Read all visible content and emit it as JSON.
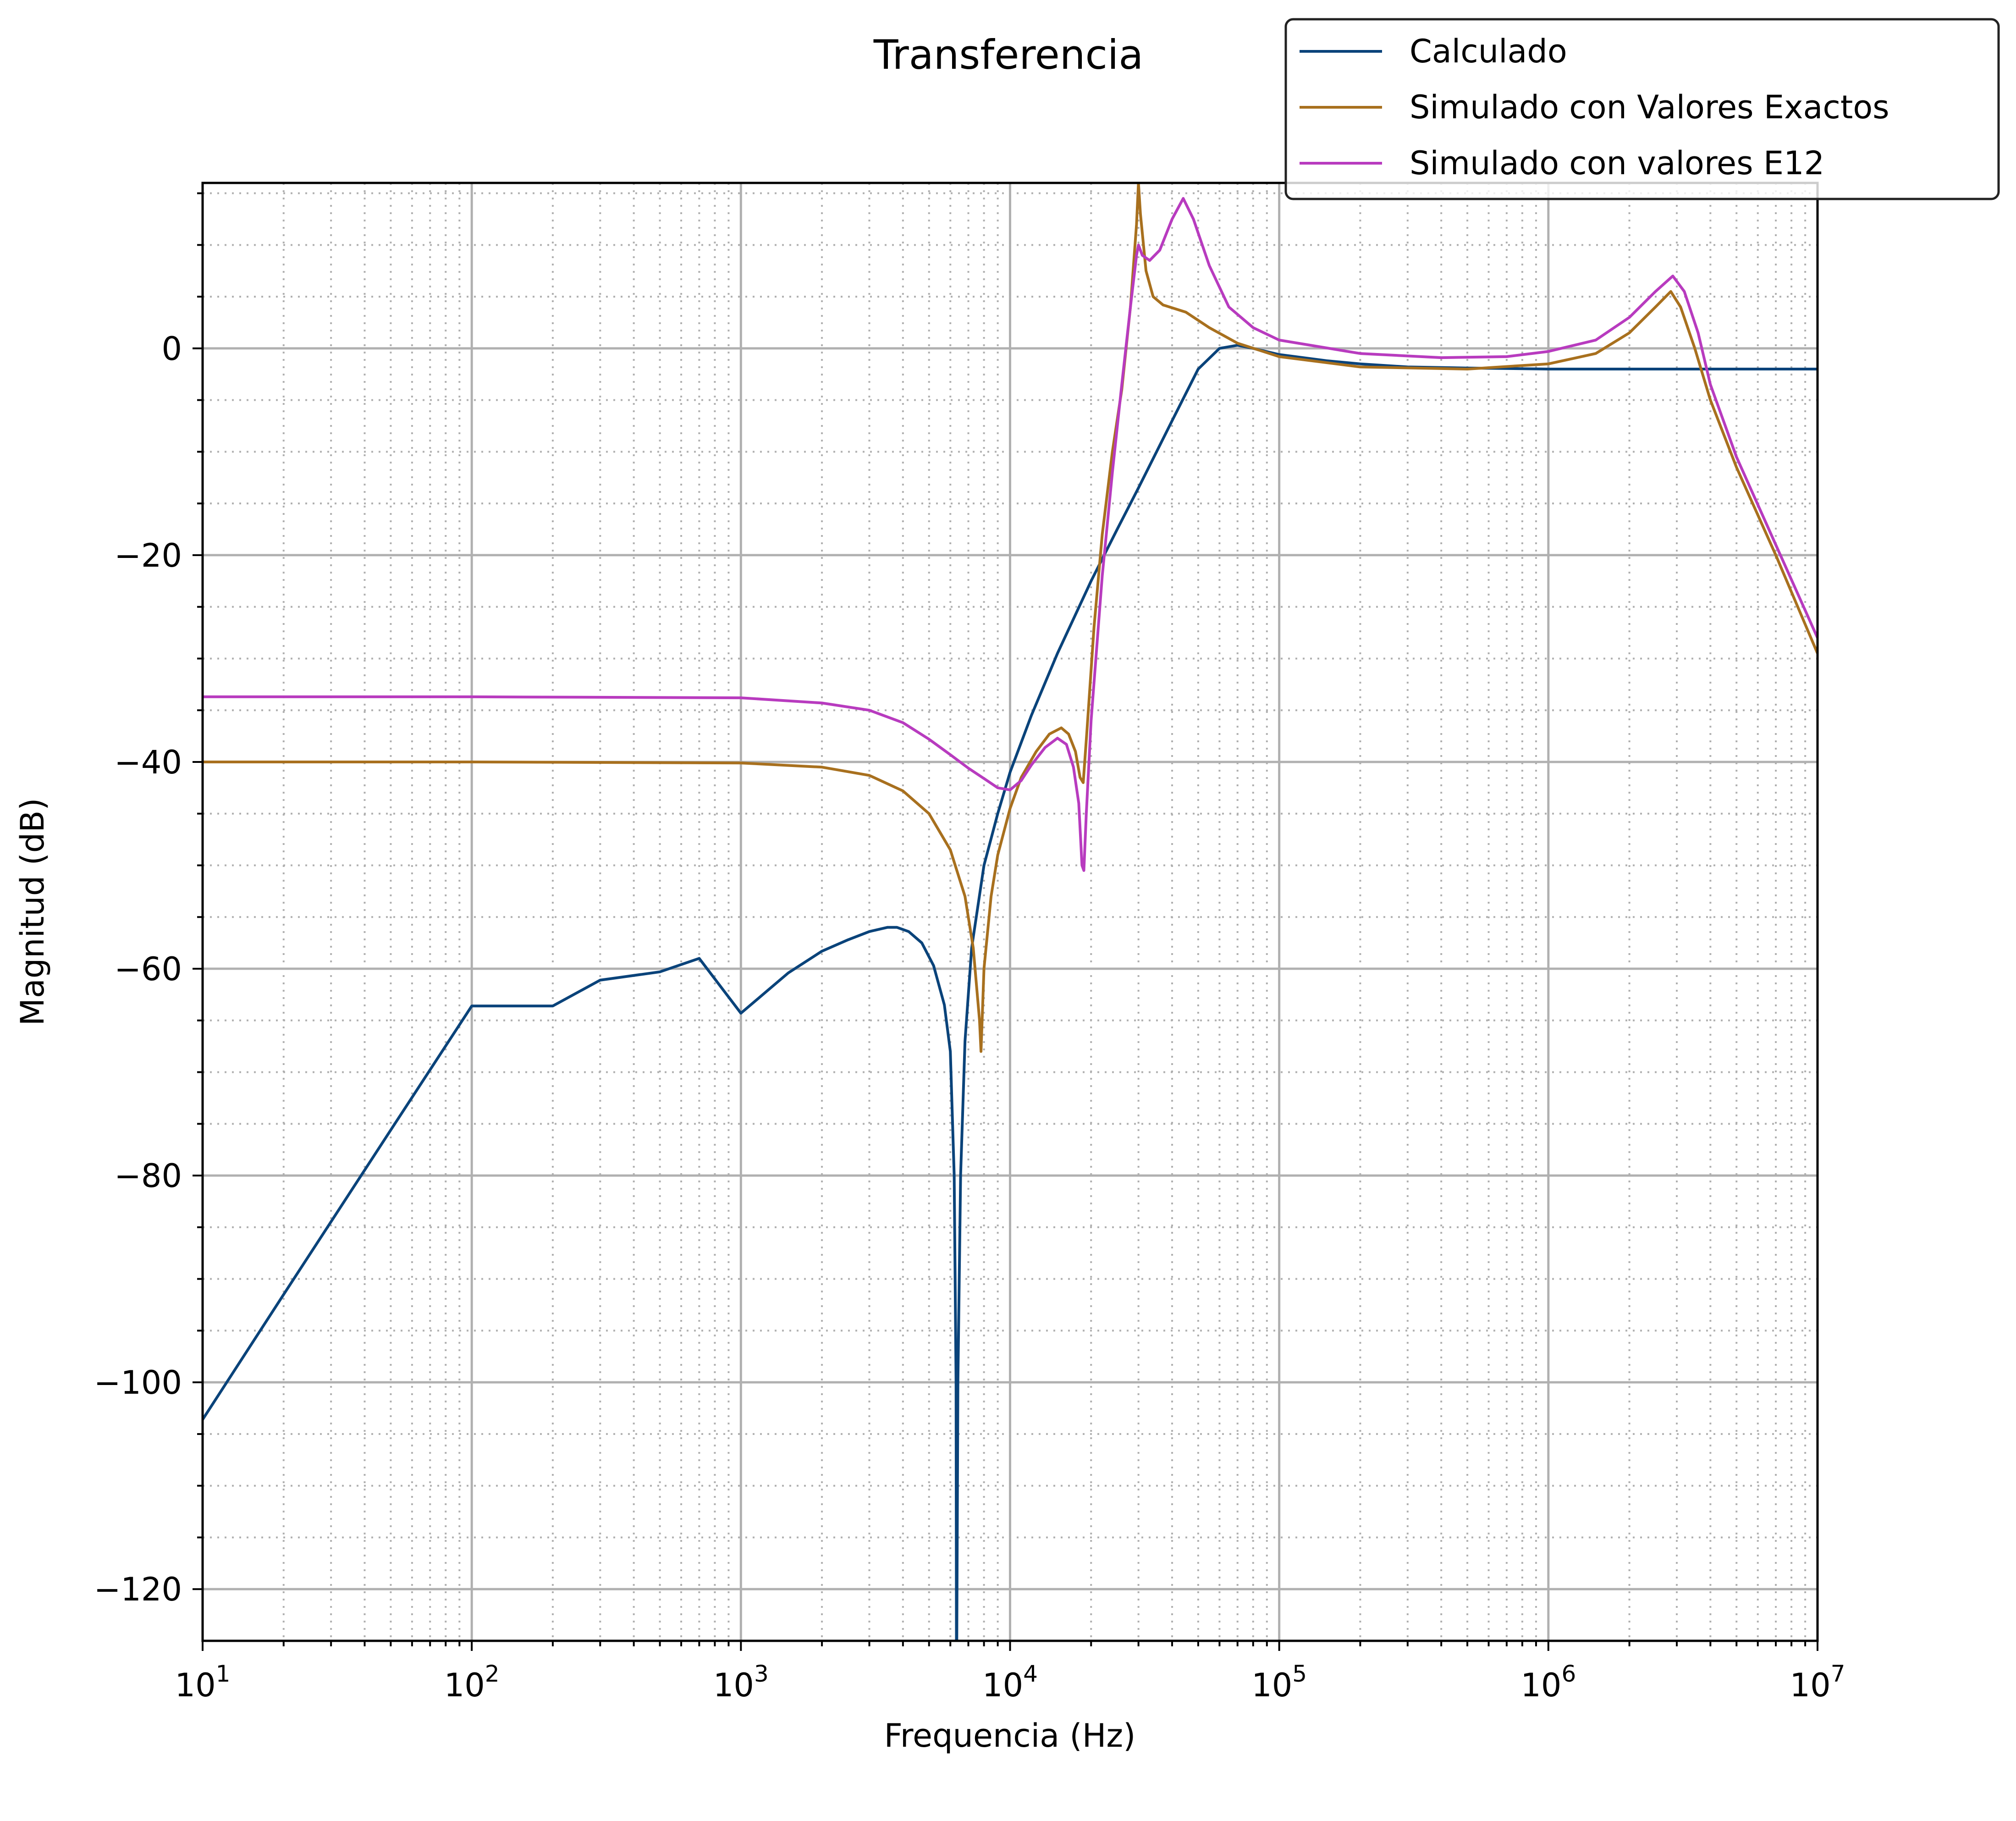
{
  "chart_data": {
    "type": "line",
    "title": "Transferencia",
    "xlabel": "Frequencia (Hz)",
    "ylabel": "Magnitud (dB)",
    "xscale": "log",
    "xlim": [
      10,
      10000000
    ],
    "ylim": [
      -125,
      16
    ],
    "xticks": [
      {
        "base": "10",
        "exp": "1"
      },
      {
        "base": "10",
        "exp": "2"
      },
      {
        "base": "10",
        "exp": "3"
      },
      {
        "base": "10",
        "exp": "4"
      },
      {
        "base": "10",
        "exp": "5"
      },
      {
        "base": "10",
        "exp": "6"
      },
      {
        "base": "10",
        "exp": "7"
      }
    ],
    "yticks": [
      "−120",
      "−100",
      "−80",
      "−60",
      "−40",
      "−20",
      "0"
    ],
    "grid": "major and minor",
    "legend_position": "top-right",
    "series": [
      {
        "name": "Calculado",
        "color": "#0a437a",
        "points": [
          [
            10,
            -103.6
          ],
          [
            20,
            -91.5
          ],
          [
            50,
            -75.6
          ],
          [
            100,
            -63.6
          ],
          [
            200,
            -63.6
          ],
          [
            300,
            -61.1
          ],
          [
            500,
            -60.3
          ],
          [
            700,
            -59.0
          ],
          [
            1000,
            -64.3
          ],
          [
            1500,
            -60.4
          ],
          [
            2000,
            -58.3
          ],
          [
            2500,
            -57.2
          ],
          [
            3000,
            -56.4
          ],
          [
            3500,
            -56.0
          ],
          [
            3800,
            -56.0
          ],
          [
            4200,
            -56.4
          ],
          [
            4700,
            -57.5
          ],
          [
            5200,
            -59.7
          ],
          [
            5700,
            -63.5
          ],
          [
            6000,
            -68.0
          ],
          [
            6200,
            -80.0
          ],
          [
            6300,
            -100.0
          ],
          [
            6320,
            -125.0
          ],
          [
            6340,
            -125.0
          ],
          [
            6400,
            -100.0
          ],
          [
            6550,
            -80.0
          ],
          [
            6800,
            -67.0
          ],
          [
            7200,
            -58.0
          ],
          [
            8000,
            -50.0
          ],
          [
            9000,
            -45.0
          ],
          [
            10000,
            -41.0
          ],
          [
            12000,
            -35.5
          ],
          [
            15000,
            -29.5
          ],
          [
            20000,
            -22.5
          ],
          [
            25000,
            -17.5
          ],
          [
            30000,
            -13.5
          ],
          [
            40000,
            -7.0
          ],
          [
            50000,
            -2.0
          ],
          [
            60000,
            0.0
          ],
          [
            70000,
            0.3
          ],
          [
            80000,
            0.0
          ],
          [
            100000,
            -0.6
          ],
          [
            150000,
            -1.2
          ],
          [
            200000,
            -1.5
          ],
          [
            300000,
            -1.8
          ],
          [
            500000,
            -1.9
          ],
          [
            1000000,
            -2.0
          ],
          [
            10000000,
            -2.0
          ]
        ]
      },
      {
        "name": "Simulado con Valores Exactos",
        "color": "#a8701e",
        "points": [
          [
            10,
            -40.0
          ],
          [
            100,
            -40.0
          ],
          [
            1000,
            -40.1
          ],
          [
            2000,
            -40.5
          ],
          [
            3000,
            -41.3
          ],
          [
            4000,
            -42.8
          ],
          [
            5000,
            -45.0
          ],
          [
            6000,
            -48.5
          ],
          [
            6800,
            -53.0
          ],
          [
            7300,
            -58.0
          ],
          [
            7700,
            -65.0
          ],
          [
            7800,
            -68.0
          ],
          [
            8000,
            -60.0
          ],
          [
            8500,
            -53.0
          ],
          [
            9000,
            -49.0
          ],
          [
            10000,
            -44.5
          ],
          [
            11000,
            -41.5
          ],
          [
            12500,
            -39.0
          ],
          [
            14000,
            -37.3
          ],
          [
            15500,
            -36.7
          ],
          [
            16500,
            -37.3
          ],
          [
            17500,
            -39.0
          ],
          [
            18200,
            -41.5
          ],
          [
            18700,
            -42.0
          ],
          [
            19300,
            -37.0
          ],
          [
            20500,
            -27.0
          ],
          [
            22000,
            -18.0
          ],
          [
            24000,
            -10.0
          ],
          [
            26000,
            -4.0
          ],
          [
            28000,
            4.0
          ],
          [
            29500,
            12.0
          ],
          [
            30000,
            16.0
          ],
          [
            30500,
            13.0
          ],
          [
            32000,
            7.5
          ],
          [
            34000,
            5.0
          ],
          [
            37000,
            4.2
          ],
          [
            45000,
            3.5
          ],
          [
            55000,
            2.0
          ],
          [
            70000,
            0.5
          ],
          [
            100000,
            -0.8
          ],
          [
            200000,
            -1.8
          ],
          [
            500000,
            -2.0
          ],
          [
            1000000,
            -1.5
          ],
          [
            1500000,
            -0.5
          ],
          [
            2000000,
            1.5
          ],
          [
            2500000,
            4.0
          ],
          [
            2850000,
            5.5
          ],
          [
            3100000,
            4.0
          ],
          [
            3500000,
            0.0
          ],
          [
            4000000,
            -5.0
          ],
          [
            5000000,
            -11.5
          ],
          [
            7000000,
            -20.0
          ],
          [
            10000000,
            -29.5
          ]
        ]
      },
      {
        "name": "Simulado con valores E12",
        "color": "#b83bbf",
        "points": [
          [
            10,
            -33.7
          ],
          [
            100,
            -33.7
          ],
          [
            1000,
            -33.8
          ],
          [
            2000,
            -34.3
          ],
          [
            3000,
            -35.0
          ],
          [
            4000,
            -36.2
          ],
          [
            5000,
            -37.8
          ],
          [
            6000,
            -39.3
          ],
          [
            7000,
            -40.6
          ],
          [
            8000,
            -41.6
          ],
          [
            9000,
            -42.5
          ],
          [
            10000,
            -42.7
          ],
          [
            11000,
            -41.8
          ],
          [
            12000,
            -40.3
          ],
          [
            13500,
            -38.6
          ],
          [
            15000,
            -37.7
          ],
          [
            16200,
            -38.3
          ],
          [
            17200,
            -40.5
          ],
          [
            18000,
            -44.0
          ],
          [
            18500,
            -50.0
          ],
          [
            18800,
            -50.5
          ],
          [
            19200,
            -45.0
          ],
          [
            20000,
            -36.0
          ],
          [
            22000,
            -22.0
          ],
          [
            24000,
            -12.0
          ],
          [
            26000,
            -3.5
          ],
          [
            28000,
            4.0
          ],
          [
            29500,
            9.0
          ],
          [
            30000,
            10.0
          ],
          [
            31000,
            9.0
          ],
          [
            33000,
            8.5
          ],
          [
            36000,
            9.5
          ],
          [
            40000,
            12.5
          ],
          [
            44000,
            14.5
          ],
          [
            48000,
            12.5
          ],
          [
            55000,
            8.0
          ],
          [
            65000,
            4.0
          ],
          [
            80000,
            2.0
          ],
          [
            100000,
            0.8
          ],
          [
            200000,
            -0.5
          ],
          [
            400000,
            -0.9
          ],
          [
            700000,
            -0.8
          ],
          [
            1000000,
            -0.3
          ],
          [
            1500000,
            0.8
          ],
          [
            2000000,
            3.0
          ],
          [
            2500000,
            5.5
          ],
          [
            2900000,
            7.0
          ],
          [
            3200000,
            5.5
          ],
          [
            3600000,
            1.5
          ],
          [
            4000000,
            -3.5
          ],
          [
            5000000,
            -10.5
          ],
          [
            7000000,
            -19.0
          ],
          [
            10000000,
            -28.0
          ]
        ]
      }
    ]
  }
}
